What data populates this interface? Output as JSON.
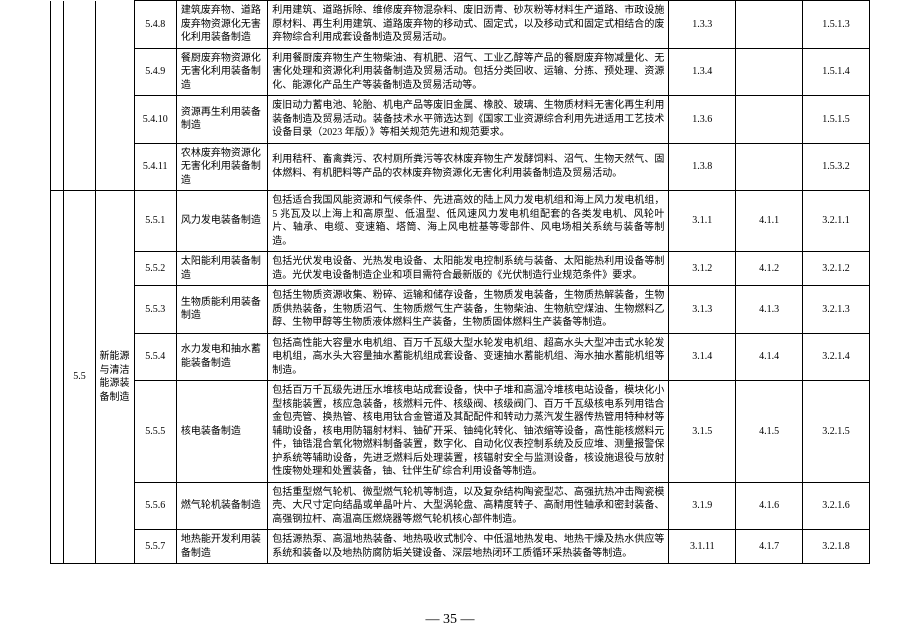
{
  "parent": {
    "code": "5.5",
    "name": "新能源与清洁能源装备制造"
  },
  "rows": [
    {
      "code": "5.4.8",
      "name": "建筑废弃物、道路废弃物资源化无害化利用装备制造",
      "desc": "利用建筑、道路拆除、维修废弃物混杂料、废旧沥青、砂灰粉等材料生产道路、市政设施原材料、再生利用建筑、道路废弃物的移动式、固定式，以及移动式和固定式相结合的废弃物综合利用成套设备制造及贸易活动。",
      "c1": "1.3.3",
      "c2": "",
      "c3": "1.5.1.3"
    },
    {
      "code": "5.4.9",
      "name": "餐厨废弃物资源化无害化利用装备制造",
      "desc": "利用餐厨废弃物生产生物柴油、有机肥、沼气、工业乙醇等产品的餐厨废弃物减量化、无害化处理和资源化利用装备制造及贸易活动。包括分类回收、运输、分拣、预处理、资源化、能源化产品生产等装备制造及贸易活动等。",
      "c1": "1.3.4",
      "c2": "",
      "c3": "1.5.1.4"
    },
    {
      "code": "5.4.10",
      "name": "资源再生利用装备制造",
      "desc": "废旧动力蓄电池、轮胎、机电产品等废旧金属、橡胶、玻璃、生物质材料无害化再生利用装备制造及贸易活动。装备技术水平筛选达到《国家工业资源综合利用先进适用工艺技术设备目录（2023 年版）》等相关规范先进和规范要求。",
      "c1": "1.3.6",
      "c2": "",
      "c3": "1.5.1.5"
    },
    {
      "code": "5.4.11",
      "name": "农林废弃物资源化无害化利用装备制造",
      "desc": "利用秸秆、畜禽粪污、农村厕所粪污等农林废弃物生产发酵饲料、沼气、生物天然气、固体燃料、有机肥料等产品的农林废弃物资源化无害化利用装备制造及贸易活动。",
      "c1": "1.3.8",
      "c2": "",
      "c3": "1.5.3.2"
    },
    {
      "code": "5.5.1",
      "name": "风力发电装备制造",
      "desc": "包括适合我国风能资源和气候条件、先进高效的陆上风力发电机组和海上风力发电机组，5 兆瓦及以上海上和高原型、低温型、低风速风力发电机组配套的各类发电机、风轮叶片、轴承、电缆、变速箱、塔筒、海上风电桩基等零部件、风电场相关系统与装备等制造。",
      "c1": "3.1.1",
      "c2": "4.1.1",
      "c3": "3.2.1.1"
    },
    {
      "code": "5.5.2",
      "name": "太阳能利用装备制造",
      "desc": "包括光伏发电设备、光热发电设备、太阳能发电控制系统与装备、太阳能热利用设备等制造。光伏发电设备制造企业和项目需符合最新版的《光伏制造行业规范条件》要求。",
      "c1": "3.1.2",
      "c2": "4.1.2",
      "c3": "3.2.1.2"
    },
    {
      "code": "5.5.3",
      "name": "生物质能利用装备制造",
      "desc": "包括生物质资源收集、粉碎、运输和储存设备，生物质发电装备，生物质热解装备，生物质供热装备，生物质沼气、生物质燃气生产装备，生物柴油、生物航空煤油、生物燃料乙醇、生物甲醇等生物质液体燃料生产装备，生物质固体燃料生产装备等制造。",
      "c1": "3.1.3",
      "c2": "4.1.3",
      "c3": "3.2.1.3"
    },
    {
      "code": "5.5.4",
      "name": "水力发电和抽水蓄能装备制造",
      "desc": "包括高性能大容量水电机组、百万千瓦级大型水轮发电机组、超高水头大型冲击式水轮发电机组，高水头大容量抽水蓄能机组成套设备、变速抽水蓄能机组、海水抽水蓄能机组等制造。",
      "c1": "3.1.4",
      "c2": "4.1.4",
      "c3": "3.2.1.4"
    },
    {
      "code": "5.5.5",
      "name": "核电装备制造",
      "desc": "包括百万千瓦级先进压水堆核电站成套设备，快中子堆和高温冷堆核电站设备，模块化小型核能装置，核应急装备，核燃料元件、核级阀、核级阀门、百万千瓦级核电系列用锆合金包壳管、换热管、核电用钛合金管道及其配配件和转动力蒸汽发生器传热管用特种材等辅助设备，核电用防辐射材料、铀矿开采、铀纯化转化、铀浓缩等设备，高性能核燃料元件，铀锆混合氧化物燃料制备装置，数字化、自动化仪表控制系统及反应堆、测量报警保护系统等辅助设备，先进乏燃料后处理装置，核辐射安全与监测设备，核设施退役与放射性废物处理和处置装备，铀、钍伴生矿综合利用设备等制造。",
      "c1": "3.1.5",
      "c2": "4.1.5",
      "c3": "3.2.1.5"
    },
    {
      "code": "5.5.6",
      "name": "燃气轮机装备制造",
      "desc": "包括重型燃气轮机、微型燃气轮机等制造，以及复杂结构陶瓷型芯、高强抗热冲击陶瓷模壳、大尺寸定向结晶或单晶叶片、大型涡轮盘、高精度转子、高耐用性轴承和密封装备、高强钢拉杆、高温高压燃烧器等燃气轮机核心部件制造。",
      "c1": "3.1.9",
      "c2": "4.1.6",
      "c3": "3.2.1.6"
    },
    {
      "code": "5.5.7",
      "name": "地热能开发利用装备制造",
      "desc": "包括源热泵、高温地热装备、地热吸收式制冷、中低温地热发电、地热干燥及热水供应等系统和装备以及地热防腐防垢关键设备、深层地热闭环工质循环采热装备等制造。",
      "c1": "3.1.11",
      "c2": "4.1.7",
      "c3": "3.2.1.8"
    }
  ],
  "pageNumber": "— 35 —"
}
